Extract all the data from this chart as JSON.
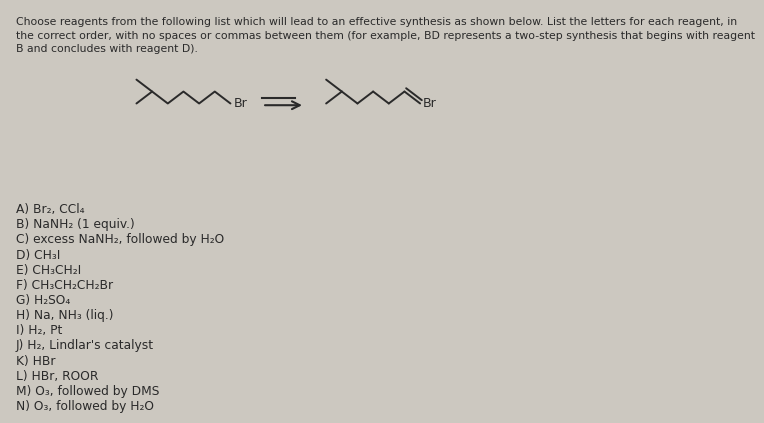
{
  "title_text": "Choose reagents from the following list which will lead to an effective synthesis as shown below. List the letters for each reagent, in\nthe correct order, with no spaces or commas between them (for example, BD represents a two-step synthesis that begins with reagent\nB and concludes with reagent D).",
  "reagents": [
    "A) Br₂, CCl₄",
    "B) NaNH₂ (1 equiv.)",
    "C) excess NaNH₂, followed by H₂O",
    "D) CH₃I",
    "E) CH₃CH₂I",
    "F) CH₃CH₂CH₂Br",
    "G) H₂SO₄",
    "H) Na, NH₃ (liq.)",
    "I) H₂, Pt",
    "J) H₂, Lindlar's catalyst",
    "K) HBr",
    "L) HBr, ROOR",
    "M) O₃, followed by DMS",
    "N) O₃, followed by H₂O"
  ],
  "bg_color": "#ccc8c0",
  "text_color": "#2a2a2a",
  "title_fontsize": 7.8,
  "reagent_fontsize": 8.8,
  "arrow_color": "#2a2a2a",
  "mol_color": "#2a2a2a"
}
